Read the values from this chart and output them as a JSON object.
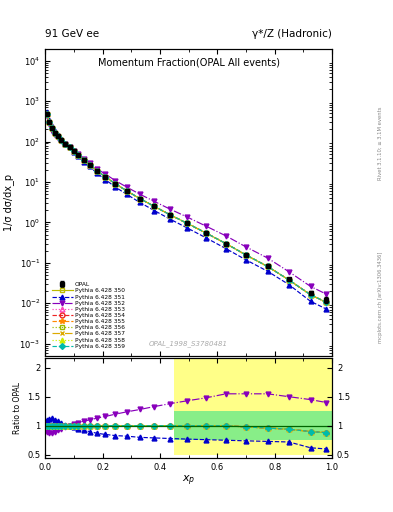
{
  "title_top": "91 GeV ee",
  "title_right": "γ*/Z (Hadronic)",
  "plot_title": "Momentum Fraction(OPAL All events)",
  "xlabel": "x_p",
  "ylabel_main": "1/σ dσ/dx_p",
  "ylabel_ratio": "Ratio to OPAL",
  "watermark": "OPAL_1998_S3780481",
  "right_label": "mcplots.cern.ch [arXiv:1306.3436]",
  "right_label2": "Rivet 3.1.10; ≥ 3.1M events",
  "xp_data": [
    0.005,
    0.015,
    0.025,
    0.035,
    0.045,
    0.055,
    0.07,
    0.085,
    0.1,
    0.115,
    0.135,
    0.155,
    0.18,
    0.21,
    0.245,
    0.285,
    0.33,
    0.38,
    0.435,
    0.495,
    0.56,
    0.63,
    0.7,
    0.775,
    0.85,
    0.925,
    0.98
  ],
  "opal_y": [
    480,
    310,
    215,
    165,
    135,
    112,
    88,
    72,
    57,
    47,
    35,
    27,
    19,
    13.5,
    9.0,
    6.0,
    3.9,
    2.5,
    1.55,
    0.95,
    0.55,
    0.3,
    0.16,
    0.085,
    0.04,
    0.018,
    0.012
  ],
  "opal_yerr": [
    25,
    16,
    11,
    8,
    6.5,
    5.5,
    4.2,
    3.4,
    2.7,
    2.2,
    1.6,
    1.2,
    0.85,
    0.6,
    0.4,
    0.27,
    0.17,
    0.11,
    0.065,
    0.04,
    0.025,
    0.014,
    0.008,
    0.005,
    0.003,
    0.002,
    0.002
  ],
  "tunes": [
    {
      "label": "Pythia 6.428 350",
      "color": "#bbbb00",
      "ls": "-",
      "marker": "s",
      "mfc": "none",
      "ms": 3.5
    },
    {
      "label": "Pythia 6.428 351",
      "color": "#0000cc",
      "ls": "--",
      "marker": "^",
      "mfc": "#0000cc",
      "ms": 3.5
    },
    {
      "label": "Pythia 6.428 352",
      "color": "#8800bb",
      "ls": "-.",
      "marker": "v",
      "mfc": "#8800bb",
      "ms": 3.5
    },
    {
      "label": "Pythia 6.428 353",
      "color": "#ff44bb",
      "ls": ":",
      "marker": "^",
      "mfc": "none",
      "ms": 3.5
    },
    {
      "label": "Pythia 6.428 354",
      "color": "#ee2222",
      "ls": "--",
      "marker": "o",
      "mfc": "none",
      "ms": 3.5
    },
    {
      "label": "Pythia 6.428 355",
      "color": "#ff8800",
      "ls": "--",
      "marker": "*",
      "mfc": "#ff8800",
      "ms": 4.0
    },
    {
      "label": "Pythia 6.428 356",
      "color": "#99bb00",
      "ls": ":",
      "marker": "s",
      "mfc": "none",
      "ms": 3.5
    },
    {
      "label": "Pythia 6.428 357",
      "color": "#ddaa00",
      "ls": "-.",
      "marker": "x",
      "mfc": "#ddaa00",
      "ms": 3.5
    },
    {
      "label": "Pythia 6.428 358",
      "color": "#ccee00",
      "ls": ":",
      "marker": "^",
      "mfc": "#ccee00",
      "ms": 3.5
    },
    {
      "label": "Pythia 6.428 359",
      "color": "#00bbaa",
      "ls": "--",
      "marker": "D",
      "mfc": "#00bbaa",
      "ms": 3.0
    }
  ],
  "scale_350": [
    1.0,
    1.0,
    1.0,
    1.0,
    1.0,
    1.0,
    1.0,
    1.0,
    1.0,
    1.0,
    1.0,
    1.0,
    1.0,
    1.0,
    1.0,
    1.0,
    1.0,
    1.0,
    1.0,
    1.0,
    1.0,
    1.0,
    0.98,
    0.96,
    0.94,
    0.9,
    0.88
  ],
  "scale_351": [
    1.1,
    1.12,
    1.13,
    1.1,
    1.08,
    1.05,
    1.02,
    1.0,
    0.97,
    0.95,
    0.92,
    0.9,
    0.87,
    0.85,
    0.83,
    0.82,
    0.8,
    0.79,
    0.78,
    0.77,
    0.76,
    0.75,
    0.74,
    0.73,
    0.72,
    0.62,
    0.6
  ],
  "scale_352": [
    0.9,
    0.88,
    0.87,
    0.9,
    0.92,
    0.95,
    0.98,
    1.0,
    1.03,
    1.05,
    1.08,
    1.1,
    1.13,
    1.16,
    1.2,
    1.24,
    1.28,
    1.33,
    1.38,
    1.43,
    1.48,
    1.55,
    1.55,
    1.55,
    1.5,
    1.45,
    1.4
  ],
  "scale_353": [
    1.0,
    1.0,
    1.0,
    1.0,
    1.0,
    1.0,
    1.0,
    1.0,
    1.0,
    1.0,
    1.0,
    1.0,
    1.0,
    1.0,
    1.0,
    1.0,
    1.0,
    1.0,
    1.0,
    1.0,
    1.0,
    1.0,
    0.98,
    0.96,
    0.94,
    0.9,
    0.88
  ],
  "scale_354": [
    1.0,
    1.0,
    1.0,
    1.0,
    1.0,
    1.0,
    1.0,
    1.0,
    1.0,
    1.0,
    1.0,
    1.0,
    1.0,
    1.0,
    1.0,
    1.0,
    1.0,
    1.0,
    1.0,
    1.0,
    1.0,
    1.0,
    0.98,
    0.96,
    0.94,
    0.9,
    0.88
  ],
  "scale_355": [
    1.0,
    1.0,
    1.0,
    1.0,
    1.0,
    1.0,
    1.0,
    1.0,
    1.0,
    1.0,
    1.0,
    1.0,
    1.0,
    1.0,
    1.0,
    1.0,
    1.0,
    1.0,
    1.0,
    1.0,
    1.0,
    1.0,
    0.98,
    0.96,
    0.94,
    0.9,
    0.88
  ],
  "scale_356": [
    1.0,
    1.0,
    1.0,
    1.0,
    1.0,
    1.0,
    1.0,
    1.0,
    1.0,
    1.0,
    1.0,
    1.0,
    1.0,
    1.0,
    1.0,
    1.0,
    1.0,
    1.0,
    1.0,
    1.0,
    1.0,
    1.0,
    0.98,
    0.96,
    0.94,
    0.9,
    0.88
  ],
  "scale_357": [
    1.0,
    1.0,
    1.0,
    1.0,
    1.0,
    1.0,
    1.0,
    1.0,
    1.0,
    1.0,
    1.0,
    1.0,
    1.0,
    1.0,
    1.0,
    1.0,
    1.0,
    1.0,
    1.0,
    1.0,
    1.0,
    1.0,
    0.98,
    0.96,
    0.94,
    0.9,
    0.88
  ],
  "scale_358": [
    1.0,
    1.0,
    1.0,
    1.0,
    1.0,
    1.0,
    1.0,
    1.0,
    1.0,
    1.0,
    1.0,
    1.0,
    1.0,
    1.0,
    1.0,
    1.0,
    1.0,
    1.0,
    1.0,
    1.0,
    1.0,
    1.0,
    0.98,
    0.96,
    0.94,
    0.9,
    0.88
  ],
  "scale_359": [
    1.0,
    1.0,
    1.0,
    1.0,
    1.0,
    1.0,
    1.0,
    1.0,
    1.0,
    1.0,
    1.0,
    1.0,
    1.0,
    1.0,
    1.0,
    1.0,
    1.0,
    1.0,
    1.0,
    1.0,
    1.0,
    1.0,
    0.98,
    0.96,
    0.94,
    0.9,
    0.88
  ],
  "ratio_yellow": {
    "xstart": 0.45,
    "ymin": 0.5,
    "ymax": 2.15,
    "color": "#ffff88"
  },
  "ratio_green": {
    "xstart": 0.45,
    "ymin": 0.75,
    "ymax": 1.25,
    "color": "#88ee88"
  },
  "bg_color": "#ffffff"
}
